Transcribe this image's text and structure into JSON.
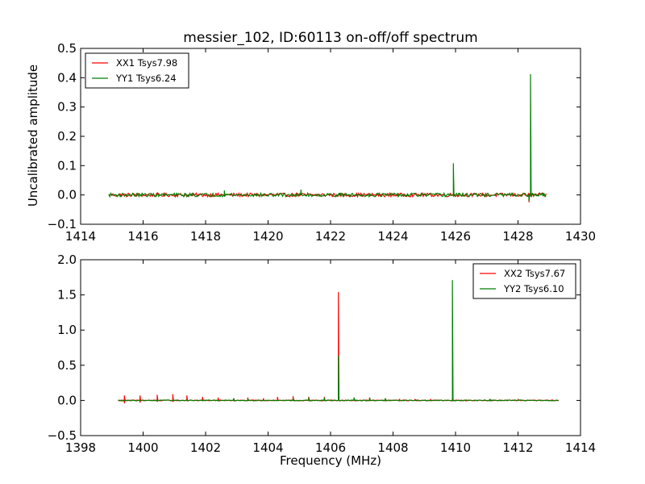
{
  "chart_data": [
    {
      "type": "line",
      "title": "messier_102, ID:60113 on-off/off spectrum",
      "xlabel": "",
      "ylabel": "Uncalibrated amplitude",
      "xlim": [
        1414,
        1430
      ],
      "ylim": [
        -0.1,
        0.5
      ],
      "xticks": [
        1414,
        1416,
        1418,
        1420,
        1422,
        1424,
        1426,
        1428,
        1430
      ],
      "yticks": [
        -0.1,
        0.0,
        0.1,
        0.2,
        0.3,
        0.4,
        0.5
      ],
      "xtick_labels": [
        "1414",
        "1416",
        "1418",
        "1420",
        "1422",
        "1424",
        "1426",
        "1428",
        "1430"
      ],
      "ytick_labels": [
        "−0.1",
        "0.0",
        "0.1",
        "0.2",
        "0.3",
        "0.4",
        "0.5"
      ],
      "grid": false,
      "legend_position": "top-left",
      "x_range": [
        1414.9,
        1428.9
      ],
      "series": [
        {
          "name": "XX1 Tsys7.98",
          "color": "#ff0000",
          "noise_amplitude": 0.006,
          "peaks": [
            {
              "x": 1428.35,
              "y": -0.025
            }
          ]
        },
        {
          "name": "YY1 Tsys6.24",
          "color": "#008000",
          "noise_amplitude": 0.006,
          "peaks": [
            {
              "x": 1418.6,
              "y": 0.015
            },
            {
              "x": 1421.05,
              "y": 0.018
            },
            {
              "x": 1425.93,
              "y": 0.108
            },
            {
              "x": 1428.4,
              "y": 0.412
            },
            {
              "x": 1428.35,
              "y": -0.02
            }
          ]
        }
      ]
    },
    {
      "type": "line",
      "title": "",
      "xlabel": "Frequency (MHz)",
      "ylabel": "",
      "xlim": [
        1398,
        1414
      ],
      "ylim": [
        -0.5,
        2.0
      ],
      "xticks": [
        1398,
        1400,
        1402,
        1404,
        1406,
        1408,
        1410,
        1412,
        1414
      ],
      "yticks": [
        -0.5,
        0.0,
        0.5,
        1.0,
        1.5,
        2.0
      ],
      "xtick_labels": [
        "1398",
        "1400",
        "1402",
        "1404",
        "1406",
        "1408",
        "1410",
        "1412",
        "1414"
      ],
      "ytick_labels": [
        "−0.5",
        "0.0",
        "0.5",
        "1.0",
        "1.5",
        "2.0"
      ],
      "grid": false,
      "legend_position": "top-right",
      "x_range": [
        1399.2,
        1413.3
      ],
      "series": [
        {
          "name": "XX2 Tsys7.67",
          "color": "#ff0000",
          "noise_amplitude": 0.006,
          "peaks": [
            {
              "x": 1399.4,
              "y": 0.07
            },
            {
              "x": 1399.4,
              "y": -0.04
            },
            {
              "x": 1399.9,
              "y": 0.07
            },
            {
              "x": 1399.9,
              "y": -0.03
            },
            {
              "x": 1400.45,
              "y": 0.08
            },
            {
              "x": 1400.45,
              "y": -0.02
            },
            {
              "x": 1400.95,
              "y": 0.09
            },
            {
              "x": 1400.95,
              "y": -0.02
            },
            {
              "x": 1401.4,
              "y": 0.07
            },
            {
              "x": 1401.9,
              "y": 0.05
            },
            {
              "x": 1402.4,
              "y": 0.04
            },
            {
              "x": 1402.9,
              "y": 0.03
            },
            {
              "x": 1403.35,
              "y": 0.04
            },
            {
              "x": 1403.85,
              "y": 0.03
            },
            {
              "x": 1404.3,
              "y": 0.05
            },
            {
              "x": 1404.8,
              "y": 0.06
            },
            {
              "x": 1405.3,
              "y": 0.05
            },
            {
              "x": 1405.8,
              "y": 0.05
            },
            {
              "x": 1406.25,
              "y": 1.54
            },
            {
              "x": 1406.75,
              "y": 0.04
            },
            {
              "x": 1407.25,
              "y": 0.04
            },
            {
              "x": 1407.75,
              "y": 0.03
            },
            {
              "x": 1408.2,
              "y": 0.02
            },
            {
              "x": 1408.7,
              "y": 0.02
            },
            {
              "x": 1409.2,
              "y": 0.02
            },
            {
              "x": 1409.9,
              "y": 0.03
            },
            {
              "x": 1411.1,
              "y": 0.02
            },
            {
              "x": 1412.0,
              "y": 0.02
            }
          ]
        },
        {
          "name": "YY2 Tsys6.10",
          "color": "#008000",
          "noise_amplitude": 0.006,
          "peaks": [
            {
              "x": 1402.9,
              "y": 0.03
            },
            {
              "x": 1403.35,
              "y": 0.03
            },
            {
              "x": 1404.8,
              "y": 0.03
            },
            {
              "x": 1405.3,
              "y": 0.04
            },
            {
              "x": 1405.8,
              "y": 0.04
            },
            {
              "x": 1406.25,
              "y": 0.64
            },
            {
              "x": 1406.75,
              "y": 0.04
            },
            {
              "x": 1407.25,
              "y": 0.04
            },
            {
              "x": 1407.75,
              "y": 0.03
            },
            {
              "x": 1409.9,
              "y": 1.71
            },
            {
              "x": 1411.1,
              "y": 0.02
            }
          ]
        }
      ]
    }
  ]
}
